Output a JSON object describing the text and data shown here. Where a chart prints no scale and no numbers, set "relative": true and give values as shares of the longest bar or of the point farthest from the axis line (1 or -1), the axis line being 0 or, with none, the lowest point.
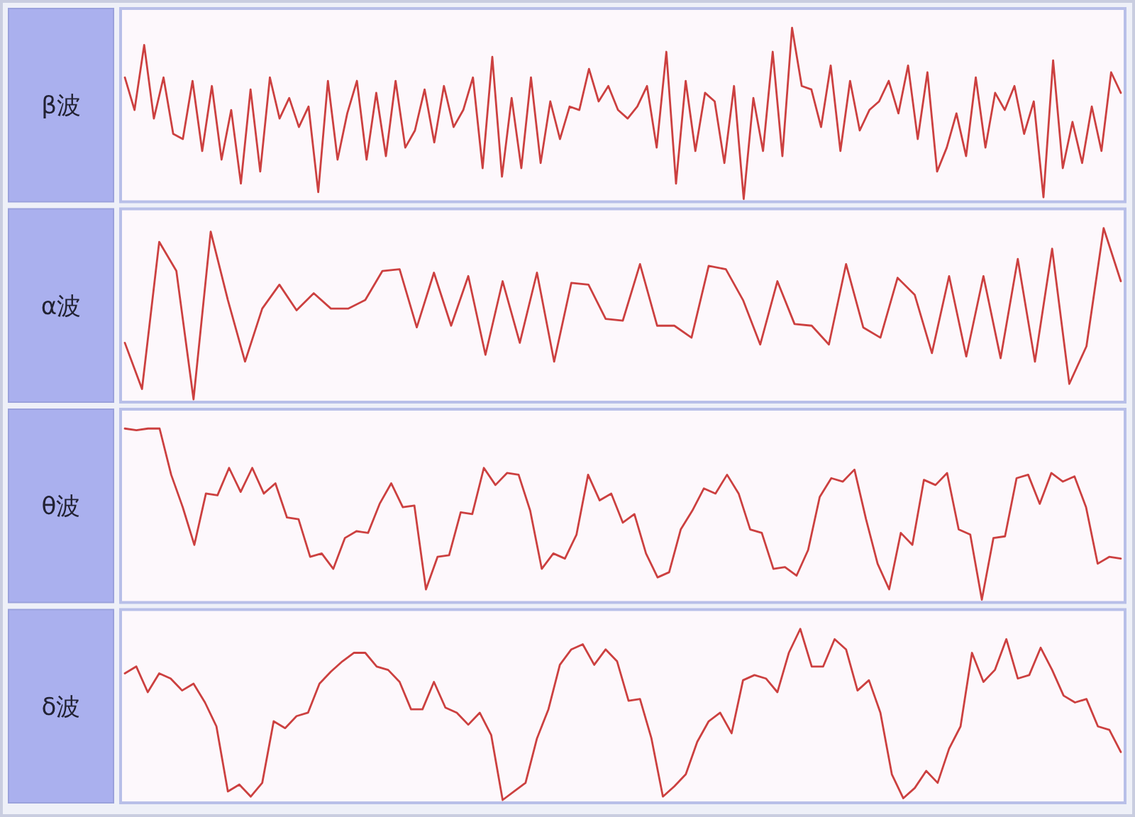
{
  "chart_data": [
    {
      "type": "line",
      "relative": true,
      "ylabel": "β波",
      "color": "#cc4040",
      "categories": [
        null,
        null,
        null,
        null,
        null,
        null,
        null,
        null,
        null,
        null,
        null,
        null,
        null,
        null,
        null,
        null,
        null,
        null,
        null,
        null,
        null,
        null,
        null,
        null,
        null,
        null,
        null,
        null,
        null,
        null,
        null,
        null,
        null,
        null,
        null,
        null,
        null,
        null,
        null,
        null,
        null,
        null,
        null,
        null,
        null,
        null,
        null,
        null,
        null,
        null,
        null,
        null,
        null,
        null,
        null,
        null,
        null,
        null,
        null,
        null,
        null,
        null,
        null,
        null,
        null,
        null,
        null,
        null,
        null,
        null,
        null,
        null,
        null,
        null,
        null,
        null,
        null,
        null,
        null,
        null,
        null,
        null,
        null,
        null,
        null,
        null,
        null,
        null,
        null,
        null,
        null,
        null,
        null,
        null,
        null,
        null,
        null,
        null,
        null,
        null,
        null,
        null,
        null,
        null
      ],
      "values": [
        0.71,
        0.52,
        0.9,
        0.47,
        0.71,
        0.38,
        0.35,
        0.69,
        0.28,
        0.66,
        0.23,
        0.52,
        0.09,
        0.64,
        0.16,
        0.71,
        0.47,
        0.59,
        0.42,
        0.54,
        0.04,
        0.69,
        0.23,
        0.5,
        0.69,
        0.23,
        0.62,
        0.25,
        0.69,
        0.3,
        0.4,
        0.64,
        0.33,
        0.66,
        0.42,
        0.52,
        0.71,
        0.18,
        0.83,
        0.13,
        0.59,
        0.18,
        0.71,
        0.21,
        0.57,
        0.35,
        0.54,
        0.52,
        0.76,
        0.57,
        0.66,
        0.52,
        0.47,
        0.54,
        0.66,
        0.3,
        0.86,
        0.09,
        0.69,
        0.28,
        0.62,
        0.57,
        0.21,
        0.66,
        0,
        0.59,
        0.28,
        0.86,
        0.25,
        1,
        0.66,
        0.64,
        0.42,
        0.78,
        0.28,
        0.69,
        0.4,
        0.52,
        0.57,
        0.69,
        0.5,
        0.78,
        0.35,
        0.74,
        0.16,
        0.3,
        0.5,
        0.25,
        0.71,
        0.3,
        0.62,
        0.52,
        0.66,
        0.38,
        0.57,
        0.01,
        0.81,
        0.18,
        0.45,
        0.21,
        0.54,
        0.28,
        0.74,
        0.62
      ]
    },
    {
      "type": "line",
      "relative": true,
      "ylabel": "α波",
      "color": "#cc4040",
      "categories": [
        null,
        null,
        null,
        null,
        null,
        null,
        null,
        null,
        null,
        null,
        null,
        null,
        null,
        null,
        null,
        null,
        null,
        null,
        null,
        null,
        null,
        null,
        null,
        null,
        null,
        null,
        null,
        null,
        null,
        null,
        null,
        null,
        null,
        null,
        null,
        null,
        null,
        null,
        null,
        null,
        null,
        null,
        null,
        null,
        null,
        null,
        null,
        null,
        null,
        null,
        null,
        null,
        null,
        null,
        null,
        null,
        null,
        null,
        null
      ],
      "values": [
        0.33,
        0.06,
        0.92,
        0.75,
        0,
        0.98,
        0.58,
        0.22,
        0.53,
        0.67,
        0.52,
        0.62,
        0.53,
        0.53,
        0.58,
        0.75,
        0.76,
        0.42,
        0.74,
        0.43,
        0.72,
        0.26,
        0.69,
        0.33,
        0.74,
        0.22,
        0.68,
        0.67,
        0.47,
        0.46,
        0.79,
        0.43,
        0.43,
        0.36,
        0.78,
        0.76,
        0.58,
        0.32,
        0.69,
        0.44,
        0.43,
        0.32,
        0.79,
        0.42,
        0.36,
        0.71,
        0.61,
        0.27,
        0.72,
        0.25,
        0.72,
        0.24,
        0.82,
        0.22,
        0.88,
        0.09,
        0.31,
        1,
        0.69
      ]
    },
    {
      "type": "line",
      "relative": true,
      "ylabel": "θ波",
      "color": "#cc4040",
      "categories": [
        null,
        null,
        null,
        null,
        null,
        null,
        null,
        null,
        null,
        null,
        null,
        null,
        null,
        null,
        null,
        null,
        null,
        null,
        null,
        null,
        null,
        null,
        null,
        null,
        null,
        null,
        null,
        null,
        null,
        null,
        null,
        null,
        null,
        null,
        null,
        null,
        null,
        null,
        null,
        null,
        null,
        null,
        null,
        null,
        null,
        null,
        null,
        null,
        null,
        null,
        null,
        null,
        null,
        null,
        null,
        null,
        null,
        null,
        null,
        null,
        null,
        null,
        null,
        null,
        null,
        null,
        null,
        null,
        null,
        null,
        null,
        null,
        null,
        null,
        null,
        null,
        null,
        null,
        null,
        null,
        null,
        null,
        null,
        null,
        null,
        null,
        null
      ],
      "values": [
        1,
        0.99,
        1,
        1,
        0.73,
        0.54,
        0.32,
        0.62,
        0.61,
        0.77,
        0.63,
        0.77,
        0.62,
        0.68,
        0.48,
        0.47,
        0.25,
        0.27,
        0.18,
        0.36,
        0.4,
        0.39,
        0.56,
        0.68,
        0.54,
        0.55,
        0.06,
        0.25,
        0.26,
        0.51,
        0.5,
        0.77,
        0.67,
        0.74,
        0.73,
        0.52,
        0.18,
        0.27,
        0.24,
        0.38,
        0.73,
        0.58,
        0.62,
        0.45,
        0.5,
        0.27,
        0.13,
        0.16,
        0.41,
        0.52,
        0.65,
        0.62,
        0.73,
        0.62,
        0.41,
        0.39,
        0.18,
        0.19,
        0.14,
        0.29,
        0.6,
        0.71,
        0.69,
        0.76,
        0.47,
        0.21,
        0.06,
        0.39,
        0.32,
        0.7,
        0.67,
        0.74,
        0.41,
        0.38,
        0,
        0.36,
        0.37,
        0.71,
        0.73,
        0.56,
        0.74,
        0.69,
        0.72,
        0.54,
        0.21,
        0.25,
        0.24
      ]
    },
    {
      "type": "line",
      "relative": true,
      "ylabel": "δ波",
      "color": "#cc4040",
      "categories": [
        null,
        null,
        null,
        null,
        null,
        null,
        null,
        null,
        null,
        null,
        null,
        null,
        null,
        null,
        null,
        null,
        null,
        null,
        null,
        null,
        null,
        null,
        null,
        null,
        null,
        null,
        null,
        null,
        null,
        null,
        null,
        null,
        null,
        null,
        null,
        null,
        null,
        null,
        null,
        null,
        null,
        null,
        null,
        null,
        null,
        null,
        null,
        null,
        null,
        null,
        null,
        null,
        null,
        null,
        null,
        null,
        null,
        null,
        null,
        null,
        null,
        null,
        null,
        null,
        null,
        null,
        null,
        null,
        null,
        null,
        null,
        null,
        null,
        null,
        null,
        null,
        null,
        null,
        null,
        null,
        null,
        null,
        null,
        null,
        null,
        null,
        null,
        null
      ],
      "values": [
        0.74,
        0.78,
        0.63,
        0.74,
        0.71,
        0.64,
        0.68,
        0.57,
        0.43,
        0.05,
        0.09,
        0.02,
        0.1,
        0.46,
        0.42,
        0.49,
        0.51,
        0.68,
        0.75,
        0.81,
        0.86,
        0.86,
        0.78,
        0.76,
        0.69,
        0.53,
        0.53,
        0.69,
        0.54,
        0.51,
        0.44,
        0.51,
        0.38,
        0,
        0.05,
        0.1,
        0.36,
        0.53,
        0.79,
        0.88,
        0.91,
        0.79,
        0.88,
        0.81,
        0.58,
        0.59,
        0.36,
        0.02,
        0.08,
        0.15,
        0.34,
        0.46,
        0.51,
        0.39,
        0.7,
        0.73,
        0.71,
        0.63,
        0.86,
        1,
        0.78,
        0.78,
        0.94,
        0.88,
        0.64,
        0.7,
        0.51,
        0.15,
        0.01,
        0.07,
        0.17,
        0.1,
        0.3,
        0.43,
        0.86,
        0.69,
        0.76,
        0.94,
        0.71,
        0.73,
        0.89,
        0.76,
        0.61,
        0.57,
        0.59,
        0.43,
        0.41,
        0.28
      ]
    }
  ]
}
